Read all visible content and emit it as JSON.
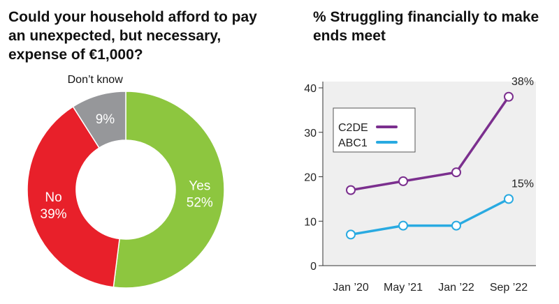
{
  "left_title": "Could your household afford to pay an unexpected, but necessary, expense of €1,000?",
  "right_title": "% Struggling financially to make ends meet",
  "chart_data": [
    {
      "type": "pie",
      "style": "donut",
      "title": "Could your household afford to pay an unexpected, but necessary, expense of €1,000?",
      "slices": [
        {
          "label": "Yes",
          "value": 52,
          "value_label": "52%",
          "color": "#8dc63f"
        },
        {
          "label": "No",
          "value": 39,
          "value_label": "39%",
          "color": "#e8202a"
        },
        {
          "label": "Don’t know",
          "value": 9,
          "value_label": "9%",
          "color": "#96979a"
        }
      ]
    },
    {
      "type": "line",
      "title": "% Struggling financially to make ends meet",
      "categories": [
        "Jan ’20",
        "May ’21",
        "Jan ’22",
        "Sep ’22"
      ],
      "ylim": [
        0,
        40
      ],
      "yticks": [
        "0",
        "10",
        "20",
        "30",
        "40"
      ],
      "grid": false,
      "legend": "top-left",
      "series": [
        {
          "name": "C2DE",
          "values": [
            17,
            19,
            21,
            38
          ],
          "end_label": "38%",
          "color": "#7b2f8e"
        },
        {
          "name": "ABC1",
          "values": [
            7,
            9,
            9,
            15
          ],
          "end_label": "15%",
          "color": "#29aae1"
        }
      ]
    }
  ]
}
